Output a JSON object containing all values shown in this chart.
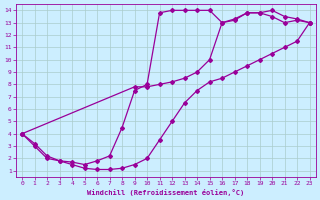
{
  "xlabel": "Windchill (Refroidissement éolien,°C)",
  "bg_color": "#cceeff",
  "line_color": "#990099",
  "grid_color": "#aacccc",
  "xlim": [
    -0.5,
    23.5
  ],
  "ylim": [
    0.5,
    14.5
  ],
  "xticks": [
    0,
    1,
    2,
    3,
    4,
    5,
    6,
    7,
    8,
    9,
    10,
    11,
    12,
    13,
    14,
    15,
    16,
    17,
    18,
    19,
    20,
    21,
    22,
    23
  ],
  "yticks": [
    1,
    2,
    3,
    4,
    5,
    6,
    7,
    8,
    9,
    10,
    11,
    12,
    13,
    14
  ],
  "curve1_x": [
    0,
    1,
    2,
    3,
    4,
    5,
    6,
    7,
    8,
    9,
    10,
    11,
    12,
    13,
    14,
    15,
    16,
    17,
    18,
    19,
    20,
    21,
    22,
    23
  ],
  "curve1_y": [
    4,
    3,
    2,
    1.8,
    1.5,
    1.2,
    1.1,
    1.1,
    1.2,
    1.5,
    2.0,
    3.5,
    5.0,
    6.5,
    7.5,
    8.2,
    8.5,
    9.0,
    9.5,
    10.0,
    10.5,
    11.0,
    11.5,
    13.0
  ],
  "curve2_x": [
    0,
    1,
    2,
    3,
    4,
    5,
    6,
    7,
    8,
    9,
    10,
    11,
    12,
    13,
    14,
    15,
    16,
    17,
    18,
    19,
    20,
    21,
    22,
    23
  ],
  "curve2_y": [
    4,
    3.2,
    2.2,
    1.8,
    1.7,
    1.5,
    1.8,
    2.2,
    4.5,
    7.5,
    8.0,
    13.8,
    14.0,
    14.0,
    14.0,
    14.0,
    13.0,
    13.2,
    13.8,
    13.8,
    13.5,
    13.0,
    13.2,
    13.0
  ],
  "curve3_x": [
    0,
    9,
    10,
    11,
    12,
    13,
    14,
    15,
    16,
    17,
    18,
    19,
    20,
    21,
    22,
    23
  ],
  "curve3_y": [
    4,
    7.8,
    7.8,
    8.0,
    8.2,
    8.5,
    9.0,
    10.0,
    13.0,
    13.3,
    13.8,
    13.8,
    14.0,
    13.5,
    13.3,
    13.0
  ],
  "marker": "D",
  "markersize": 2.0,
  "linewidth": 0.9
}
